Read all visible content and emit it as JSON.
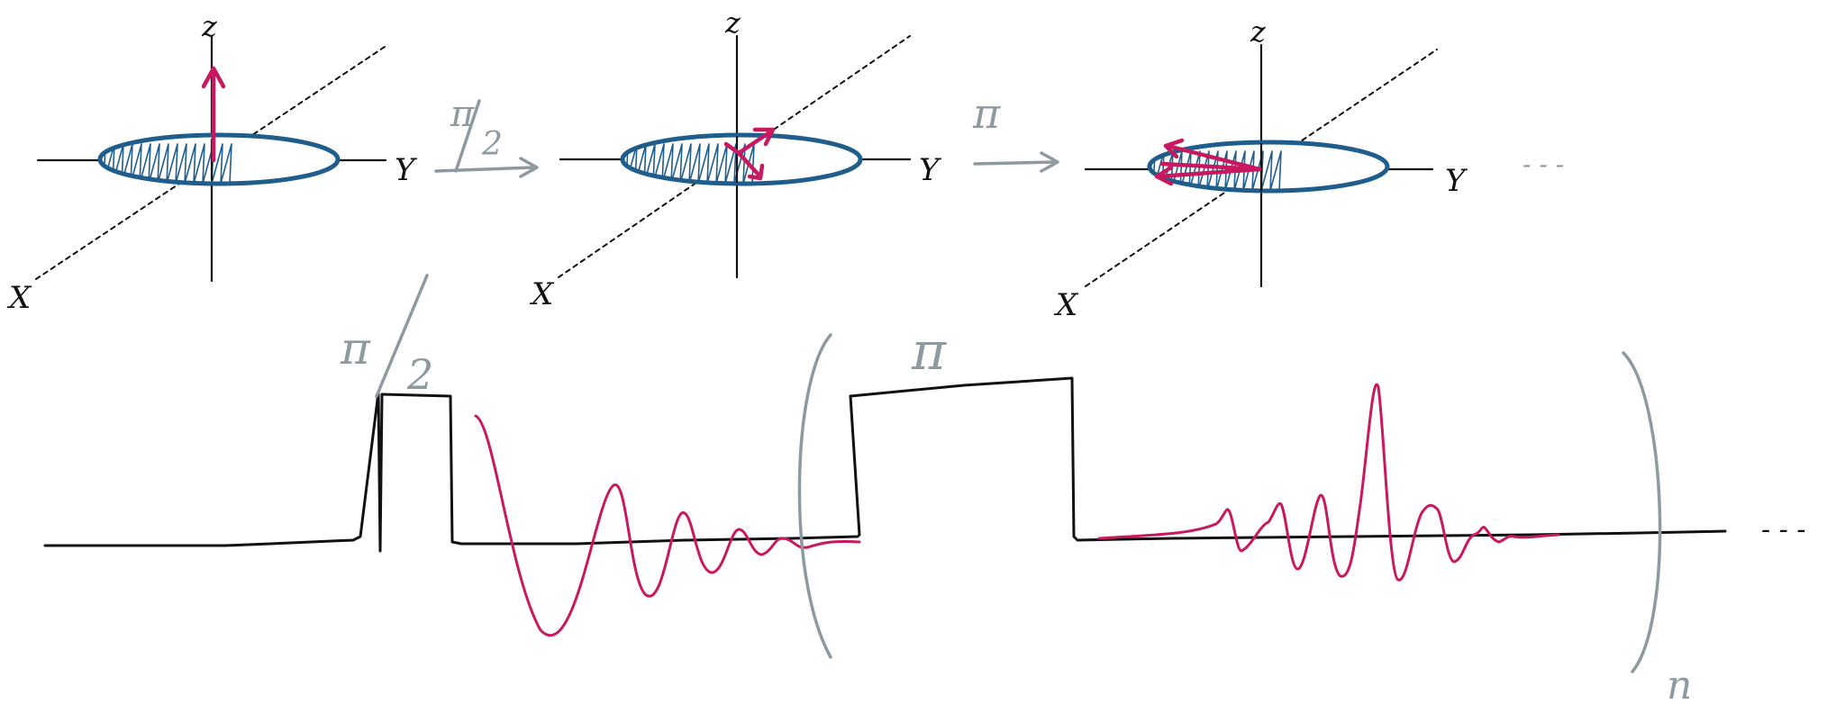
{
  "colors": {
    "axis": "#111111",
    "disc": "#1f5d8c",
    "vector": "#c8195f",
    "annotation": "#8f9a9f"
  },
  "panels": [
    {
      "axis_labels": {
        "z": "z",
        "y": "Y",
        "x": "X"
      },
      "state": "magnetization along z"
    },
    {
      "axis_labels": {
        "z": "z",
        "y": "Y",
        "x": "X"
      },
      "state": "spins dephasing in XY plane"
    },
    {
      "axis_labels": {
        "z": "z",
        "y": "Y",
        "x": "X"
      },
      "state": "spins refocusing after pi pulse"
    }
  ],
  "transitions": [
    {
      "label_top": "π",
      "label_bottom": "2"
    },
    {
      "label": "π"
    }
  ],
  "trailing_dots": "- - -",
  "sequence": {
    "pulse1": {
      "label_top": "π",
      "label_bottom": "2"
    },
    "pulse2": {
      "label": "π"
    },
    "repeat_label": "n",
    "trailing_dots": "- - -"
  }
}
